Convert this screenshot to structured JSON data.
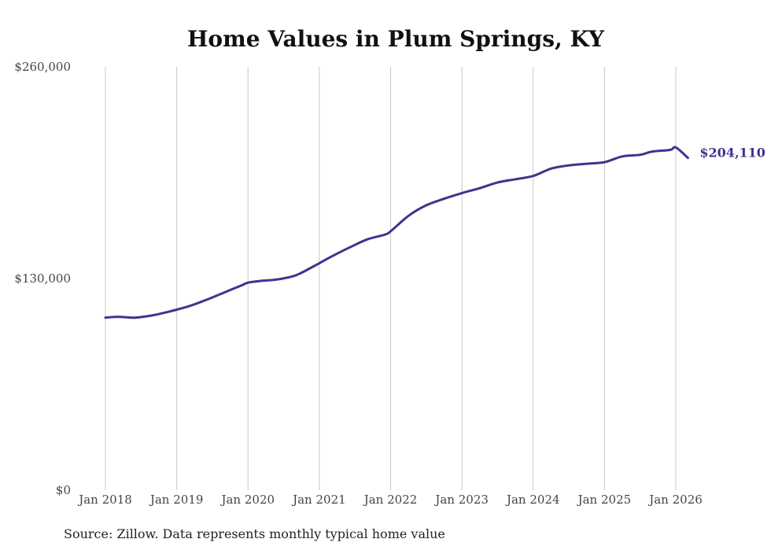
{
  "chart_data": {
    "type": "line",
    "title": "Home Values in Plum Springs, KY",
    "source": "Source: Zillow. Data represents monthly typical home value",
    "xlabel": "",
    "ylabel": "",
    "ylim": [
      0,
      260000
    ],
    "y_ticks": [
      {
        "value": 0,
        "label": "$0"
      },
      {
        "value": 130000,
        "label": "$130,000"
      },
      {
        "value": 260000,
        "label": "$260,000"
      }
    ],
    "x_ticks": [
      {
        "value": 2018,
        "label": "Jan 2018"
      },
      {
        "value": 2019,
        "label": "Jan 2019"
      },
      {
        "value": 2020,
        "label": "Jan 2020"
      },
      {
        "value": 2021,
        "label": "Jan 2021"
      },
      {
        "value": 2022,
        "label": "Jan 2022"
      },
      {
        "value": 2023,
        "label": "Jan 2023"
      },
      {
        "value": 2024,
        "label": "Jan 2024"
      },
      {
        "value": 2025,
        "label": "Jan 2025"
      },
      {
        "value": 2026,
        "label": "Jan 2026"
      }
    ],
    "xlim": [
      2018,
      2026.17
    ],
    "grid": "vertical",
    "series": [
      {
        "name": "Typical home value",
        "color": "#3d3490",
        "end_label": "$204,110",
        "points": [
          {
            "x": 2018.0,
            "y": 106000
          },
          {
            "x": 2018.17,
            "y": 106500
          },
          {
            "x": 2018.42,
            "y": 106000
          },
          {
            "x": 2018.67,
            "y": 107500
          },
          {
            "x": 2018.92,
            "y": 110000
          },
          {
            "x": 2019.17,
            "y": 113000
          },
          {
            "x": 2019.42,
            "y": 117000
          },
          {
            "x": 2019.67,
            "y": 121500
          },
          {
            "x": 2019.92,
            "y": 126000
          },
          {
            "x": 2020.0,
            "y": 127500
          },
          {
            "x": 2020.17,
            "y": 128500
          },
          {
            "x": 2020.42,
            "y": 129500
          },
          {
            "x": 2020.67,
            "y": 132000
          },
          {
            "x": 2020.92,
            "y": 137500
          },
          {
            "x": 2021.17,
            "y": 143500
          },
          {
            "x": 2021.42,
            "y": 149000
          },
          {
            "x": 2021.67,
            "y": 154000
          },
          {
            "x": 2021.92,
            "y": 157000
          },
          {
            "x": 2022.0,
            "y": 159000
          },
          {
            "x": 2022.25,
            "y": 168500
          },
          {
            "x": 2022.5,
            "y": 175000
          },
          {
            "x": 2022.75,
            "y": 179000
          },
          {
            "x": 2023.0,
            "y": 182500
          },
          {
            "x": 2023.25,
            "y": 185500
          },
          {
            "x": 2023.5,
            "y": 189000
          },
          {
            "x": 2023.75,
            "y": 191000
          },
          {
            "x": 2024.0,
            "y": 193000
          },
          {
            "x": 2024.25,
            "y": 197500
          },
          {
            "x": 2024.5,
            "y": 199500
          },
          {
            "x": 2024.75,
            "y": 200500
          },
          {
            "x": 2025.0,
            "y": 201500
          },
          {
            "x": 2025.25,
            "y": 205000
          },
          {
            "x": 2025.5,
            "y": 206000
          },
          {
            "x": 2025.67,
            "y": 208000
          },
          {
            "x": 2025.92,
            "y": 209000
          },
          {
            "x": 2026.0,
            "y": 210500
          },
          {
            "x": 2026.17,
            "y": 204110
          }
        ]
      }
    ]
  }
}
